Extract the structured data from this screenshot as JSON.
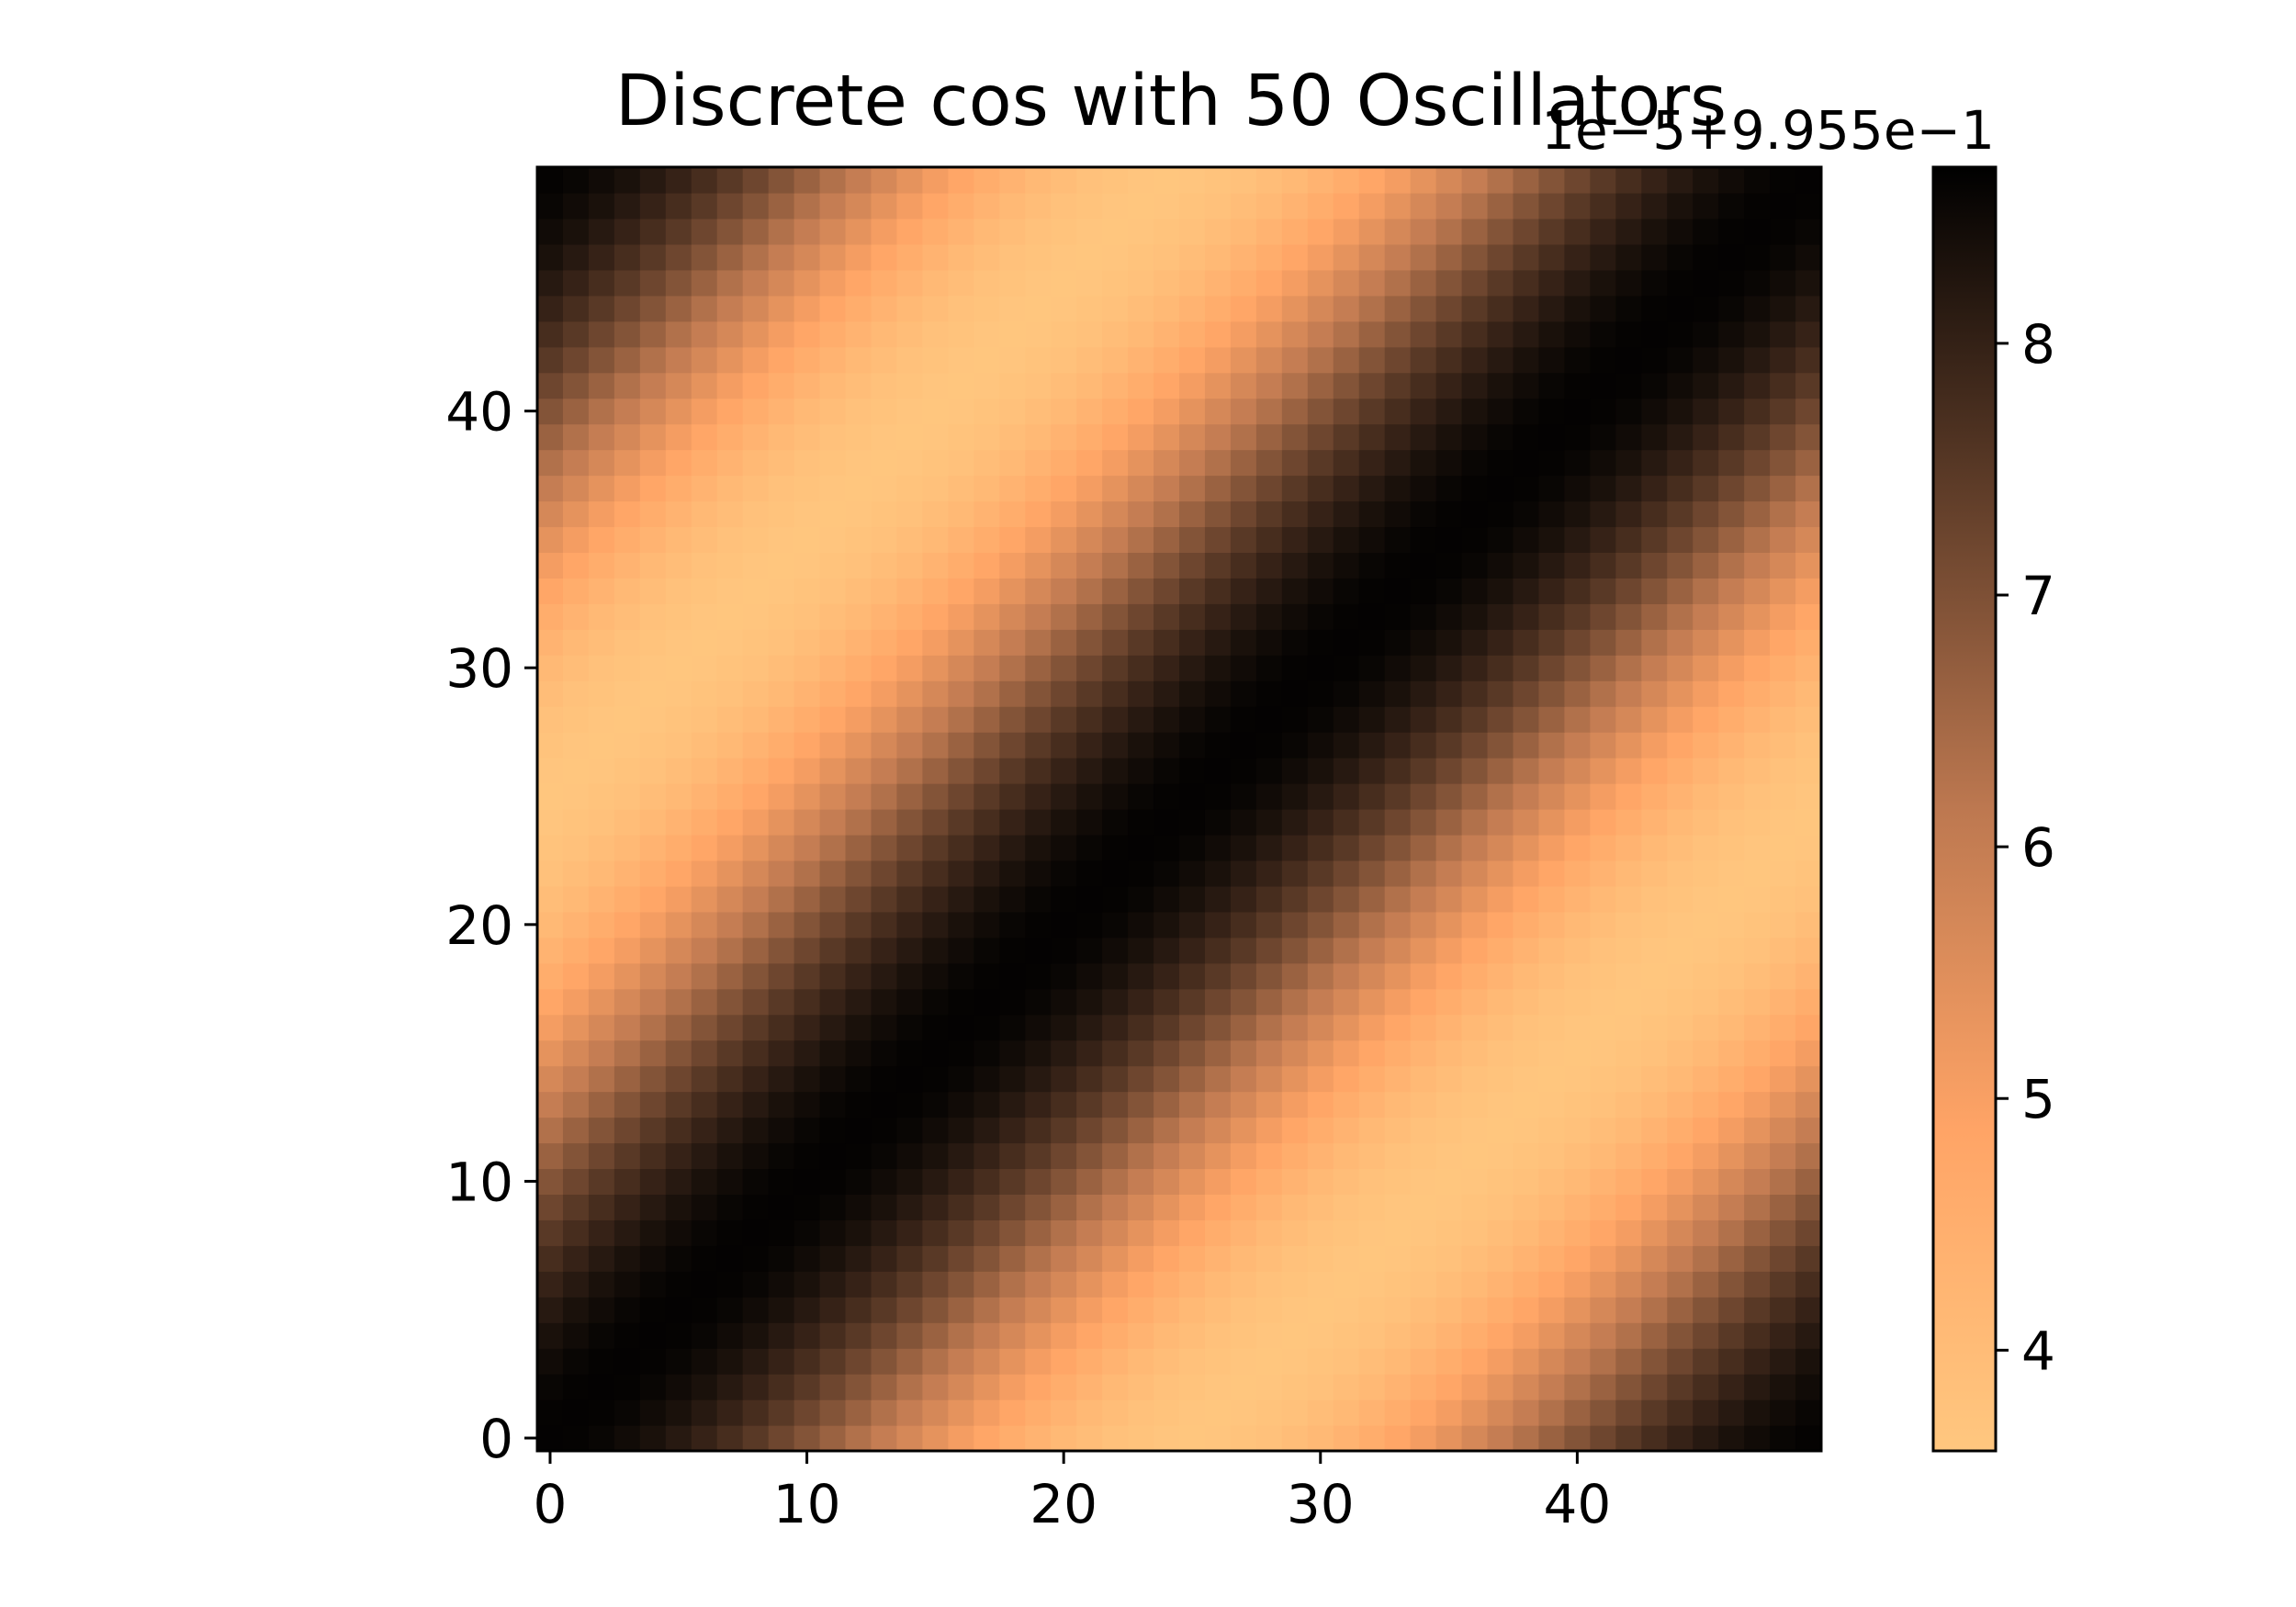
{
  "chart_data": {
    "type": "heatmap",
    "title": "Discrete cos with 50 Oscillators",
    "xlabel": "",
    "ylabel": "",
    "grid": false,
    "origin": "lower",
    "rows": 50,
    "cols": 50,
    "xlim": [
      -0.5,
      49.5
    ],
    "ylim": [
      -0.5,
      49.5
    ],
    "x_ticks": [
      0,
      10,
      20,
      30,
      40
    ],
    "y_ticks": [
      0,
      10,
      20,
      30,
      40
    ],
    "x_tick_labels": [
      "0",
      "10",
      "20",
      "30",
      "40"
    ],
    "y_tick_labels": [
      "0",
      "10",
      "20",
      "30",
      "40"
    ],
    "value_function": "offset + scale * (6.15 + 2.5 * cos(2*pi*(x - y)/50))",
    "colormap": "copper_r",
    "colormap_stops": [
      "#ffc77f",
      "#ffa466",
      "#bd7850",
      "#5e3c28",
      "#000000"
    ],
    "colorbar": {
      "range": [
        3.6,
        8.7
      ],
      "ticks": [
        4,
        5,
        6,
        7,
        8
      ],
      "tick_labels": [
        "4",
        "5",
        "6",
        "7",
        "8"
      ],
      "offset_label": "1e−5+9.955e−1",
      "scale": 1e-05,
      "offset": 0.9955
    }
  }
}
